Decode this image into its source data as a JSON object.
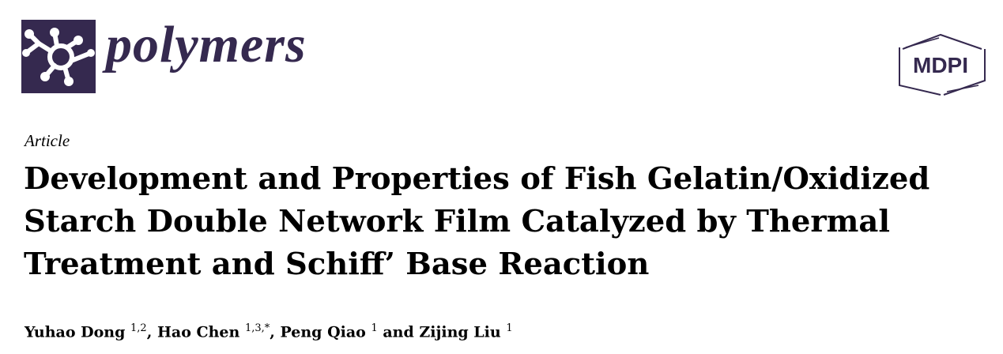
{
  "journal": {
    "name": "polymers",
    "logo_icon": "molecule-icon",
    "brand_color": "#35294f"
  },
  "publisher": {
    "name": "MDPI",
    "logo_icon": "hexagon-logo"
  },
  "article_type": "Article",
  "title_lines": [
    "Development and Properties of Fish Gelatin/Oxidized",
    "Starch Double Network Film Catalyzed by Thermal",
    "Treatment and Schiff’ Base Reaction"
  ],
  "authors": [
    {
      "name": "Yuhao Dong",
      "affil": "1,2",
      "sep": ", "
    },
    {
      "name": "Hao Chen",
      "affil": "1,3,*",
      "sep": ", "
    },
    {
      "name": "Peng Qiao",
      "affil": "1",
      "sep": " and "
    },
    {
      "name": "Zijing Liu",
      "affil": "1",
      "sep": ""
    }
  ]
}
